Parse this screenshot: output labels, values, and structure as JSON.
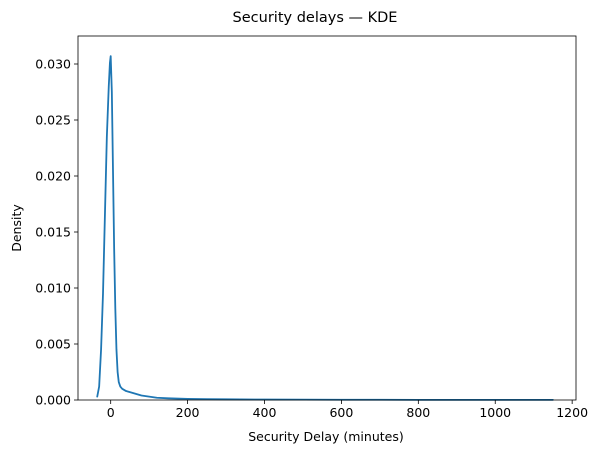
{
  "chart_data": {
    "type": "line",
    "title": "Security delays — KDE",
    "xlabel": "Security Delay (minutes)",
    "ylabel": "Density",
    "xlim": [
      -85,
      1210
    ],
    "ylim": [
      0,
      0.0325
    ],
    "x_ticks": [
      0,
      200,
      400,
      600,
      800,
      1000,
      1200
    ],
    "x_tick_labels": [
      "0",
      "200",
      "400",
      "600",
      "800",
      "1000",
      "1200"
    ],
    "y_ticks": [
      0,
      0.005,
      0.01,
      0.015,
      0.02,
      0.025,
      0.03
    ],
    "y_tick_labels": [
      "0.000",
      "0.005",
      "0.010",
      "0.015",
      "0.020",
      "0.025",
      "0.030"
    ],
    "grid": false,
    "line_color": "#1f77b4",
    "series": [
      {
        "x": [
          -35,
          -30,
          -25,
          -20,
          -15,
          -10,
          -5,
          -2,
          0,
          3,
          6,
          9,
          12,
          15,
          18,
          21,
          25,
          30,
          35,
          40,
          50,
          60,
          70,
          80,
          100,
          120,
          150,
          200,
          250,
          300,
          400,
          500,
          600,
          700,
          800,
          900,
          1000,
          1100,
          1150
        ],
        "y": [
          0.0003,
          0.0012,
          0.0045,
          0.0095,
          0.0165,
          0.0235,
          0.028,
          0.0301,
          0.0307,
          0.0275,
          0.0205,
          0.0135,
          0.0082,
          0.0045,
          0.0025,
          0.0016,
          0.0012,
          0.001,
          0.0009,
          0.0008,
          0.0007,
          0.0006,
          0.0005,
          0.0004,
          0.0003,
          0.0002,
          0.00015,
          0.0001,
          8e-05,
          6e-05,
          4e-05,
          3e-05,
          2e-05,
          2e-05,
          1e-05,
          1e-05,
          1e-05,
          1e-05,
          1e-05
        ]
      }
    ]
  }
}
